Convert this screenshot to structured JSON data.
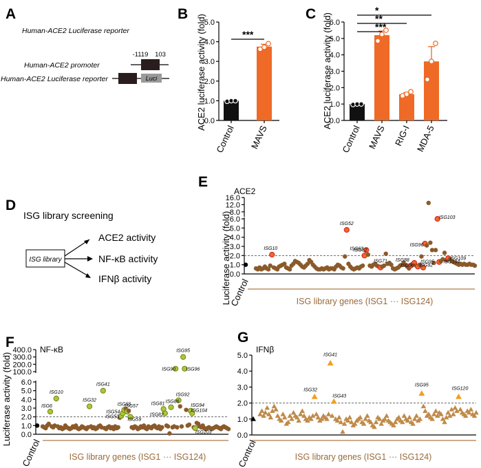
{
  "panels": {
    "A": {
      "letter": "A",
      "title": "Human-ACE2 Luciferase reporter",
      "promoter_label": "Human-ACE2 promoter",
      "reporter_label": "Human-ACE2 Luciferase reporter",
      "pos_start": "-1119",
      "pos_end": "103",
      "luci": "Luci"
    },
    "D": {
      "letter": "D",
      "title": "ISG library screening",
      "box": "ISG library",
      "outputs": [
        "ACE2  activity",
        "NF-κB activity",
        "IFNβ  activity"
      ]
    }
  },
  "chart_data": [
    {
      "id": "B",
      "letter": "B",
      "type": "bar",
      "categories": [
        "Control",
        "MAVS"
      ],
      "values": [
        1.0,
        3.75
      ],
      "errors": [
        0.02,
        0.12
      ],
      "points": [
        [
          0.97,
          1.0,
          1.0
        ],
        [
          3.62,
          3.72,
          3.9
        ]
      ],
      "colors": [
        "#111111",
        "#ee6a26"
      ],
      "ylabel": "ACE2 luciferase activity (fold)",
      "ylim": [
        0,
        5
      ],
      "yticks": [
        "0.0",
        "1.0",
        "2.0",
        "3.0",
        "4.0",
        "5.0"
      ],
      "significance": [
        {
          "from": "Control",
          "to": "MAVS",
          "label": "***"
        }
      ]
    },
    {
      "id": "C",
      "letter": "C",
      "type": "bar",
      "categories": [
        "Control",
        "MAVS",
        "RIG-I",
        "MDA-5"
      ],
      "values": [
        1.0,
        5.2,
        1.6,
        3.6
      ],
      "errors": [
        0.02,
        0.25,
        0.1,
        0.9
      ],
      "points": [
        [
          0.97,
          1.0,
          1.0
        ],
        [
          4.85,
          5.25,
          5.5
        ],
        [
          1.5,
          1.6,
          1.75
        ],
        [
          2.5,
          3.6,
          4.7
        ]
      ],
      "colors": [
        "#111111",
        "#ee6a26",
        "#ee6a26",
        "#ee6a26"
      ],
      "ylabel": "ACE2 luciferase activity (fold)",
      "ylim": [
        0,
        6
      ],
      "yticks": [
        "0.0",
        "1.0",
        "2.0",
        "3.0",
        "4.0",
        "5.0",
        "6.0"
      ],
      "significance": [
        {
          "from": "Control",
          "to": "MAVS",
          "label": "***"
        },
        {
          "from": "Control",
          "to": "RIG-I",
          "label": "**"
        },
        {
          "from": "Control",
          "to": "MDA-5",
          "label": "*"
        }
      ]
    },
    {
      "id": "E",
      "letter": "E",
      "type": "scatter",
      "title": "ACE2",
      "ylabel": "Luciferase activity (fold)",
      "xlabel": "ISG library genes (ISG1 ··· ISG124)",
      "control_label": "Control",
      "threshold": 2.0,
      "lower_range": [
        0,
        6
      ],
      "upper_range": [
        6,
        16
      ],
      "yticks": [
        "0.0",
        "1.0",
        "2.0",
        "3.0",
        "4.0",
        "5.0",
        "6.0",
        "8.0",
        "12.0",
        "16.0"
      ],
      "point_color": "#8b5a2b",
      "highlight_color": "#ee6a26",
      "values": [
        0.6,
        0.5,
        0.7,
        0.5,
        0.6,
        0.8,
        0.6,
        0.5,
        0.9,
        2.1,
        0.7,
        0.6,
        0.5,
        0.8,
        0.9,
        1.0,
        1.1,
        0.7,
        0.6,
        0.5,
        0.9,
        1.1,
        1.4,
        1.3,
        1.2,
        1.0,
        0.8,
        0.7,
        0.9,
        1.1,
        1.5,
        1.3,
        1.0,
        0.8,
        0.6,
        0.5,
        0.5,
        0.6,
        0.5,
        0.6,
        0.7,
        0.5,
        0.6,
        0.6,
        0.5,
        0.8,
        1.0,
        0.9,
        0.7,
        0.6,
        1.9,
        4.8,
        1.1,
        0.8,
        0.6,
        0.5,
        0.6,
        0.7,
        0.6,
        0.8,
        0.9,
        2.0,
        2.6,
        2.1,
        0.9,
        0.8,
        1.0,
        1.1,
        0.9,
        0.8,
        0.7,
        0.8,
        0.9,
        2.2,
        1.1,
        1.2,
        1.0,
        0.6,
        0.5,
        0.6,
        0.7,
        0.9,
        1.0,
        1.2,
        1.0,
        0.8,
        0.6,
        0.9,
        1.1,
        1.2,
        0.9,
        0.8,
        1.0,
        1.9,
        0.7,
        3.3,
        3.1,
        13.0,
        3.4,
        2.6,
        1.2,
        2.6,
        6.0,
        1.3,
        1.4,
        1.6,
        2.3,
        1.5,
        1.7,
        1.6,
        1.4,
        1.3,
        1.2,
        1.1,
        1.0,
        1.1,
        1.0,
        1.1,
        1.0,
        1.0,
        1.1,
        1.0,
        1.0,
        0.9
      ],
      "labels": [
        {
          "i": 9,
          "text": "ISG10"
        },
        {
          "i": 51,
          "text": "ISG52"
        },
        {
          "i": 61,
          "text": "ISG62"
        },
        {
          "i": 62,
          "text": "ISG63"
        },
        {
          "i": 70,
          "text": "ISG71"
        },
        {
          "i": 87,
          "text": "ISG88"
        },
        {
          "i": 89,
          "text": "ISG90"
        },
        {
          "i": 91,
          "text": "ISG92"
        },
        {
          "i": 94,
          "text": "ISG95"
        },
        {
          "i": 95,
          "text": "ISG96"
        },
        {
          "i": 102,
          "text": "ISG103"
        },
        {
          "i": 103,
          "text": "ISG104"
        },
        {
          "i": 108,
          "text": "ISG109"
        }
      ]
    },
    {
      "id": "F",
      "letter": "F",
      "type": "scatter",
      "title": "NF-κB",
      "ylabel": "Luciferase activity (fold)",
      "xlabel": "ISG library genes (ISG1 ··· ISG124)",
      "control_label": "Control",
      "threshold": 2.0,
      "lower_range": [
        0,
        6
      ],
      "upper_range": [
        100,
        400
      ],
      "yticks": [
        "0.0",
        "1.0",
        "2.0",
        "3.0",
        "4.0",
        "5.0",
        "6.0",
        "100.0",
        "200.0",
        "300.0",
        "400.0"
      ],
      "point_color": "#8b5a2b",
      "highlight_color": "#a8c83a",
      "values": [
        0.9,
        0.8,
        0.7,
        1.0,
        1.2,
        2.6,
        0.9,
        0.8,
        1.0,
        4.1,
        0.9,
        0.7,
        0.8,
        0.6,
        0.7,
        1.0,
        0.8,
        0.7,
        0.6,
        0.7,
        0.9,
        0.8,
        1.0,
        0.7,
        0.6,
        0.7,
        0.9,
        0.8,
        0.7,
        0.6,
        0.8,
        3.2,
        0.9,
        0.7,
        0.8,
        0.6,
        0.7,
        0.9,
        1.0,
        0.8,
        5.0,
        0.7,
        0.6,
        0.8,
        0.9,
        0.7,
        0.8,
        0.6,
        0.9,
        0.7,
        0.8,
        1.9,
        2.1,
        2.4,
        2.8,
        2.9,
        2.6,
        2.7,
        2.0,
        0.8,
        0.7,
        0.9,
        0.8,
        0.6,
        0.7,
        0.9,
        0.8,
        1.0,
        0.7,
        0.6,
        0.9,
        0.8,
        0.7,
        0.9,
        1.0,
        0.8,
        0.7,
        0.9,
        0.6,
        0.8,
        2.9,
        2.4,
        1.0,
        0.9,
        0.1,
        3.1,
        0.8,
        0.9,
        140,
        0.8,
        3.9,
        3.2,
        0.9,
        300,
        140,
        2.8,
        1.0,
        1.1,
        2.7,
        2.4,
        0.8,
        0.7,
        1.3,
        1.2,
        0.9,
        0.8,
        1.0,
        0.7,
        0.6,
        0.7,
        0.8,
        0.7,
        0.6,
        0.7,
        0.8,
        0.9,
        0.8,
        0.7,
        0.6,
        0.8,
        0.9,
        0.8,
        0.7,
        0.6
      ],
      "labels": [
        {
          "i": 5,
          "text": "ISG6"
        },
        {
          "i": 9,
          "text": "ISG10"
        },
        {
          "i": 31,
          "text": "ISG32"
        },
        {
          "i": 40,
          "text": "ISG41"
        },
        {
          "i": 52,
          "text": "ISG53"
        },
        {
          "i": 53,
          "text": "ISG54"
        },
        {
          "i": 54,
          "text": "ISG55"
        },
        {
          "i": 56,
          "text": "ISG57"
        },
        {
          "i": 58,
          "text": "ISG59"
        },
        {
          "i": 80,
          "text": "ISG81"
        },
        {
          "i": 81,
          "text": "ISG82"
        },
        {
          "i": 85,
          "text": "ISG86"
        },
        {
          "i": 88,
          "text": "ISG90"
        },
        {
          "i": 90,
          "text": "ISG92"
        },
        {
          "i": 93,
          "text": "ISG95"
        },
        {
          "i": 94,
          "text": "ISG96"
        },
        {
          "i": 98,
          "text": "ISG94"
        },
        {
          "i": 99,
          "text": "ISG104"
        },
        {
          "i": 101,
          "text": "ISG103"
        }
      ]
    },
    {
      "id": "G",
      "letter": "G",
      "type": "scatter",
      "title": "IFNβ",
      "xlabel": "ISG library genes (ISG1 ··· ISG124)",
      "control_label": "Control",
      "threshold": 2.0,
      "ylim": [
        0,
        5
      ],
      "yticks": [
        "0.0",
        "1.0",
        "2.0",
        "3.0",
        "4.0",
        "5.0"
      ],
      "point_color": "#c08a4a",
      "highlight_color": "#f0a020",
      "values": [
        1.3,
        1.5,
        1.2,
        1.4,
        1.7,
        1.3,
        1.1,
        1.5,
        1.8,
        1.6,
        1.2,
        1.0,
        0.9,
        1.3,
        1.1,
        0.7,
        0.8,
        1.2,
        1.0,
        1.4,
        1.2,
        1.1,
        0.9,
        1.3,
        1.5,
        1.2,
        1.0,
        0.9,
        1.1,
        1.0,
        1.2,
        2.4,
        1.3,
        1.1,
        0.9,
        1.0,
        1.2,
        1.1,
        1.0,
        1.3,
        4.5,
        1.2,
        2.1,
        1.0,
        0.9,
        1.1,
        0.8,
        0.2,
        0.7,
        1.0,
        0.9,
        1.1,
        0.8,
        0.6,
        0.7,
        0.9,
        1.0,
        1.1,
        0.8,
        0.7,
        1.0,
        1.2,
        0.9,
        0.8,
        0.6,
        0.5,
        0.8,
        1.1,
        1.0,
        0.7,
        0.9,
        1.0,
        1.2,
        0.9,
        0.8,
        0.7,
        0.6,
        0.8,
        1.0,
        1.1,
        0.9,
        0.8,
        1.2,
        1.0,
        0.9,
        1.1,
        0.8,
        0.7,
        1.0,
        1.2,
        0.9,
        1.0,
        2.6,
        1.8,
        1.5,
        1.2,
        1.3,
        1.1,
        1.0,
        1.3,
        1.5,
        1.2,
        1.4,
        1.3,
        1.0,
        0.8,
        1.1,
        1.4,
        1.2,
        1.6,
        1.3,
        1.7,
        1.5,
        2.4,
        1.6,
        1.4,
        1.3,
        1.2,
        1.5,
        1.4,
        1.6,
        1.3,
        1.2,
        1.4
      ],
      "labels": [
        {
          "i": 31,
          "text": "ISG32"
        },
        {
          "i": 40,
          "text": "ISG41"
        },
        {
          "i": 42,
          "text": "ISG43"
        },
        {
          "i": 92,
          "text": "ISG95"
        },
        {
          "i": 113,
          "text": "ISG120"
        }
      ]
    }
  ]
}
